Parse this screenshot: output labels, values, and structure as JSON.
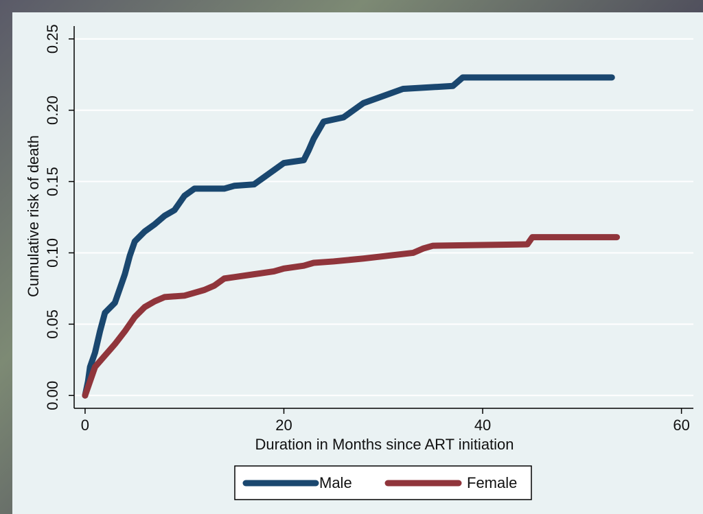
{
  "chart_data": {
    "type": "line",
    "x_label": "Duration in Months since ART initiation",
    "y_label": "Cumulative risk of death",
    "xlim": [
      -1.1,
      61.2
    ],
    "ylim": [
      -0.009,
      0.259
    ],
    "xticks": [
      0,
      20,
      40,
      60
    ],
    "yticks": [
      {
        "value": 0,
        "label": "0.00"
      },
      {
        "value": 0.05,
        "label": "0.05"
      },
      {
        "value": 0.1,
        "label": "0.10"
      },
      {
        "value": 0.15,
        "label": "0.15"
      },
      {
        "value": 0.2,
        "label": "0.20"
      },
      {
        "value": 0.25,
        "label": "0.25"
      }
    ],
    "grid": true,
    "series": [
      {
        "name": "Male",
        "color": "#1a476f",
        "x": [
          0,
          0.3,
          0.5,
          1,
          1.5,
          2,
          3,
          3.5,
          4,
          4.5,
          5,
          6,
          7,
          8,
          9,
          10,
          11,
          14,
          15,
          17,
          18,
          19,
          20,
          22,
          22.5,
          23,
          24,
          26,
          27,
          28,
          30,
          32,
          37,
          38,
          53
        ],
        "values": [
          0,
          0.01,
          0.02,
          0.03,
          0.045,
          0.058,
          0.065,
          0.075,
          0.085,
          0.098,
          0.108,
          0.115,
          0.12,
          0.126,
          0.13,
          0.14,
          0.145,
          0.145,
          0.147,
          0.148,
          0.153,
          0.158,
          0.163,
          0.165,
          0.172,
          0.18,
          0.192,
          0.195,
          0.2,
          0.205,
          0.21,
          0.215,
          0.217,
          0.223,
          0.223
        ]
      },
      {
        "name": "Female",
        "color": "#90353b",
        "x": [
          0,
          0.5,
          1,
          2,
          3,
          4,
          5,
          6,
          7,
          8,
          10,
          11,
          12,
          13,
          14,
          15,
          17,
          19,
          20,
          22,
          23,
          25,
          28,
          33,
          34,
          35,
          44.5,
          45,
          53.5
        ],
        "values": [
          0,
          0.01,
          0.02,
          0.028,
          0.036,
          0.045,
          0.055,
          0.062,
          0.066,
          0.069,
          0.07,
          0.072,
          0.074,
          0.077,
          0.082,
          0.083,
          0.085,
          0.087,
          0.089,
          0.091,
          0.093,
          0.094,
          0.096,
          0.1,
          0.103,
          0.105,
          0.106,
          0.111,
          0.111
        ]
      }
    ]
  }
}
